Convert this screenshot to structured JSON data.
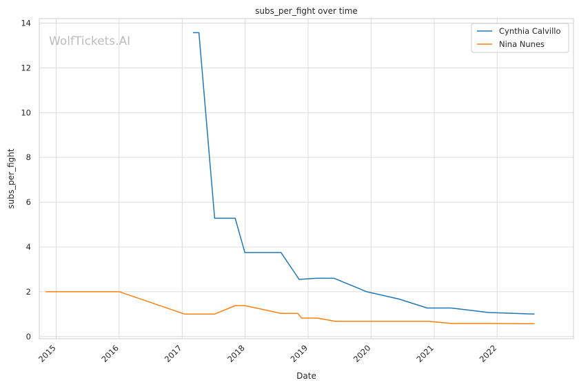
{
  "chart_data": {
    "type": "line",
    "title": "subs_per_fight over time",
    "xlabel": "Date",
    "ylabel": "subs_per_fight",
    "watermark": "WolfTickets.AI",
    "xlim": [
      "2014-09-25",
      "2023-03-20"
    ],
    "ylim": [
      -0.1,
      14.2
    ],
    "x_ticks": [
      {
        "date": "2015-01-01",
        "label": "2015"
      },
      {
        "date": "2016-01-01",
        "label": "2016"
      },
      {
        "date": "2017-01-01",
        "label": "2017"
      },
      {
        "date": "2018-01-01",
        "label": "2018"
      },
      {
        "date": "2019-01-01",
        "label": "2019"
      },
      {
        "date": "2020-01-01",
        "label": "2020"
      },
      {
        "date": "2021-01-01",
        "label": "2021"
      },
      {
        "date": "2022-01-01",
        "label": "2022"
      }
    ],
    "y_ticks": [
      {
        "value": 0,
        "label": "0"
      },
      {
        "value": 2,
        "label": "2"
      },
      {
        "value": 4,
        "label": "4"
      },
      {
        "value": 6,
        "label": "6"
      },
      {
        "value": 8,
        "label": "8"
      },
      {
        "value": 10,
        "label": "10"
      },
      {
        "value": 12,
        "label": "12"
      },
      {
        "value": 14,
        "label": "14"
      }
    ],
    "grid": true,
    "legend_position": "top-right",
    "series": [
      {
        "name": "Cynthia Calvillo",
        "color": "#1f77b4",
        "points": [
          [
            "2017-03-04",
            13.57
          ],
          [
            "2017-04-08",
            13.57
          ],
          [
            "2017-07-08",
            5.28
          ],
          [
            "2017-11-04",
            5.28
          ],
          [
            "2017-12-30",
            3.75
          ],
          [
            "2018-07-28",
            3.75
          ],
          [
            "2018-11-10",
            2.55
          ],
          [
            "2019-02-17",
            2.6
          ],
          [
            "2019-06-01",
            2.6
          ],
          [
            "2019-12-07",
            2.0
          ],
          [
            "2020-06-13",
            1.67
          ],
          [
            "2020-11-21",
            1.27
          ],
          [
            "2021-04-10",
            1.27
          ],
          [
            "2021-11-13",
            1.07
          ],
          [
            "2022-08-06",
            1.0
          ]
        ]
      },
      {
        "name": "Nina Nunes",
        "color": "#ff7f0e",
        "points": [
          [
            "2014-11-01",
            2.0
          ],
          [
            "2016-01-02",
            2.0
          ],
          [
            "2017-01-15",
            1.0
          ],
          [
            "2017-07-08",
            1.0
          ],
          [
            "2017-11-04",
            1.38
          ],
          [
            "2017-12-30",
            1.38
          ],
          [
            "2018-07-28",
            1.03
          ],
          [
            "2018-11-03",
            1.03
          ],
          [
            "2018-11-24",
            0.82
          ],
          [
            "2019-02-23",
            0.82
          ],
          [
            "2019-06-08",
            0.68
          ],
          [
            "2020-11-28",
            0.68
          ],
          [
            "2021-04-10",
            0.58
          ],
          [
            "2021-11-20",
            0.58
          ],
          [
            "2022-08-06",
            0.57
          ]
        ]
      }
    ]
  }
}
